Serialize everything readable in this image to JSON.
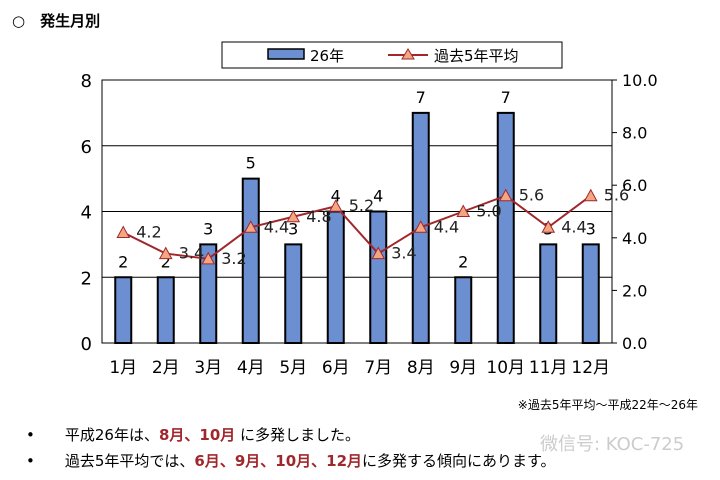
{
  "title": "○　発生月別",
  "note": "※過去5年平均～平成22年～26年",
  "bullets": [
    {
      "pre": "平成26年は、",
      "hi": "8月、10月",
      "post": " に多発しました。"
    },
    {
      "pre": "過去5年平均では、",
      "hi": "6月、9月、10月、12月",
      "post": "に多発する傾向にあります。"
    }
  ],
  "watermark": "微信号: KOC-725",
  "chart_data": {
    "type": "bar+line",
    "categories": [
      "1月",
      "2月",
      "3月",
      "4月",
      "5月",
      "6月",
      "7月",
      "8月",
      "9月",
      "10月",
      "11月",
      "12月"
    ],
    "series": [
      {
        "name": "26年",
        "type": "bar",
        "axis": "left",
        "color": "#6b8fd0",
        "values": [
          2,
          2,
          3,
          5,
          3,
          4,
          4,
          7,
          2,
          7,
          3,
          3
        ]
      },
      {
        "name": "過去5年平均",
        "type": "line",
        "axis": "right",
        "color": "#a0282c",
        "marker_color": "#f4a582",
        "values": [
          4.2,
          3.4,
          3.2,
          4.4,
          4.8,
          5.2,
          3.4,
          4.4,
          5.0,
          5.6,
          4.4,
          5.6
        ],
        "labels": [
          "4.2",
          "3.4",
          "3.2",
          "4.4",
          "4.8",
          "5.2",
          "3.4",
          "4.4",
          "5.0",
          "5.6",
          "4.4",
          "5.6"
        ]
      }
    ],
    "ylim_left": [
      0,
      8
    ],
    "yticks_left": [
      "0",
      "2",
      "4",
      "6",
      "8"
    ],
    "ylim_right": [
      0,
      10
    ],
    "yticks_right": [
      "0.0",
      "2.0",
      "4.0",
      "6.0",
      "8.0",
      "10.0"
    ],
    "grid": true,
    "legend": "top"
  }
}
